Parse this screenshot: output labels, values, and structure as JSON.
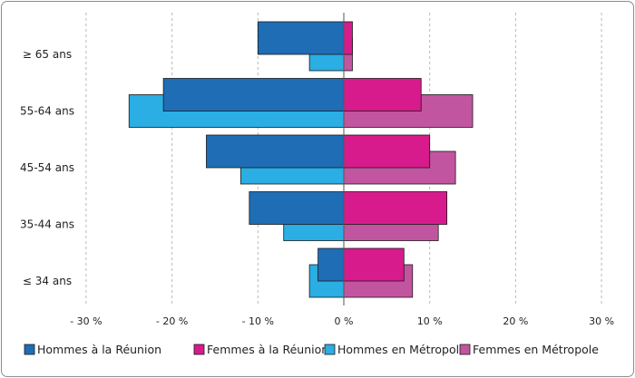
{
  "chart_data": {
    "type": "bar",
    "orientation": "horizontal",
    "title": "",
    "xlabel": "",
    "ylabel": "",
    "categories": [
      "≥ 65 ans",
      "55-64 ans",
      "45-54 ans",
      "35-44 ans",
      "≤ 34 ans"
    ],
    "xlim": [
      -30,
      30
    ],
    "x_ticks": [
      -30,
      -20,
      -10,
      0,
      10,
      20,
      30
    ],
    "x_tick_labels": [
      "- 30 %",
      "- 20 %",
      "- 10 %",
      "0 %",
      "10 %",
      "20 %",
      "30 %"
    ],
    "grid": "vertical dashed",
    "legend_position": "bottom",
    "series": [
      {
        "name": "Hommes à la Réunion",
        "color": "#1f6db5",
        "values": [
          -10,
          -21,
          -16,
          -11,
          -3
        ]
      },
      {
        "name": "Femmes à la Réunion",
        "color": "#d81b8c",
        "values": [
          1,
          9,
          10,
          12,
          7
        ]
      },
      {
        "name": "Hommes en Métropole",
        "color": "#2aaee3",
        "values": [
          -4,
          -25,
          -12,
          -7,
          -4
        ]
      },
      {
        "name": "Femmes en Métropole",
        "color": "#c255a0",
        "values": [
          1,
          15,
          13,
          11,
          8
        ]
      }
    ]
  }
}
